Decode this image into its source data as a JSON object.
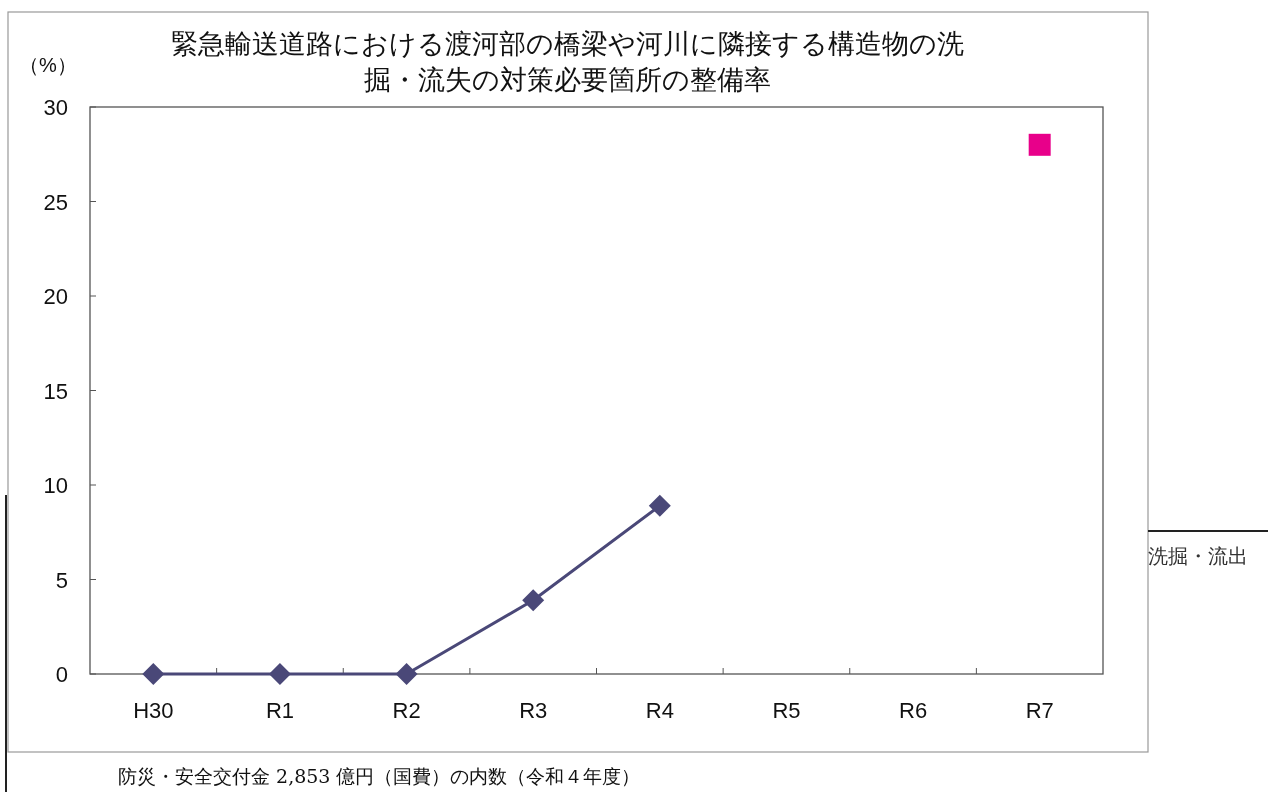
{
  "chart_data": {
    "type": "line",
    "title": "緊急輸送道路における渡河部の橋梁や河川に隣接する構造物の洗掘・流失の対策必要箇所の整備率",
    "ylabel": "（%）",
    "categories": [
      "H30",
      "R1",
      "R2",
      "R3",
      "R4",
      "R5",
      "R6",
      "R7"
    ],
    "series": [
      {
        "type": "line",
        "marker": "diamond",
        "color": "#4a4878",
        "values": [
          0,
          0,
          0,
          3.9,
          8.9,
          null,
          null,
          null
        ]
      },
      {
        "type": "scatter",
        "marker": "square",
        "color": "#e8008a",
        "values": [
          null,
          null,
          null,
          null,
          null,
          null,
          null,
          28
        ]
      }
    ],
    "ylim": [
      0,
      30
    ],
    "yticks": [
      0,
      5,
      10,
      15,
      20,
      25,
      30
    ],
    "grid": false,
    "annotations": [
      "洗掘・流出",
      "防災・安全交付金 2,853 億円（国費）の内数（令和４年度）"
    ]
  }
}
